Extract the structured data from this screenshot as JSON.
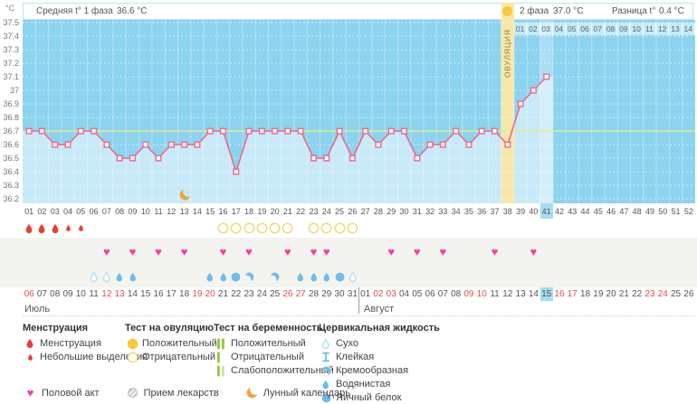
{
  "header": {
    "unit": "°C",
    "avg_phase1_label": "Средняя t° 1 фаза",
    "avg_phase1_value": "36.6 °C",
    "phase2_label": "2 фаза",
    "phase2_value": "37.0 °C",
    "diff_label": "Разница t°",
    "diff_value": "0.4 °C",
    "ovulation_label": "ОВУЛЯЦИЯ"
  },
  "chart_data": {
    "type": "line",
    "title": "График базальной температуры",
    "ylabel": "°C",
    "ylim": [
      36.2,
      37.5
    ],
    "y_ticks": [
      "37.5",
      "37.4",
      "37.3",
      "37.2",
      "37.1",
      "37",
      "36.9",
      "36.8",
      "36.7",
      "36.6",
      "36.5",
      "36.4",
      "36.3",
      "36.2"
    ],
    "total_cycle_days": 52,
    "series": [
      {
        "name": "Базальная температура",
        "x_start_day": 1,
        "values": [
          36.7,
          36.7,
          36.6,
          36.6,
          36.7,
          36.7,
          36.6,
          36.5,
          36.5,
          36.6,
          36.5,
          36.6,
          36.6,
          36.6,
          36.7,
          36.7,
          36.4,
          36.7,
          36.7,
          36.7,
          36.7,
          36.7,
          36.5,
          36.5,
          36.7,
          36.5,
          36.7,
          36.6,
          36.7,
          36.7,
          36.5,
          36.6,
          36.6,
          36.7,
          36.6,
          36.7,
          36.7,
          36.6,
          36.9,
          37.0,
          37.1
        ]
      }
    ],
    "coverline": 36.7,
    "ovulation_day": 38,
    "current_cycle_day": 41,
    "dpo_labels": [
      "01",
      "02",
      "03",
      "04",
      "05",
      "06",
      "07",
      "08",
      "09",
      "10",
      "11",
      "12",
      "13",
      "14"
    ],
    "cycle_day_labels": [
      "01",
      "02",
      "03",
      "04",
      "05",
      "06",
      "07",
      "08",
      "09",
      "10",
      "11",
      "12",
      "13",
      "14",
      "15",
      "16",
      "17",
      "18",
      "19",
      "20",
      "21",
      "22",
      "23",
      "24",
      "25",
      "26",
      "27",
      "28",
      "29",
      "30",
      "31",
      "32",
      "33",
      "34",
      "35",
      "36",
      "37",
      "38",
      "39",
      "40",
      "41",
      "42",
      "43",
      "44",
      "45",
      "46",
      "47",
      "48",
      "49",
      "50",
      "51",
      "52"
    ]
  },
  "markers": {
    "menstruation_heavy_days": [
      1,
      2,
      3
    ],
    "menstruation_light_days": [
      4,
      5
    ],
    "ovulation_test_negative_days": [
      16,
      17,
      18,
      19,
      20,
      21,
      23,
      24,
      25,
      26
    ],
    "intercourse_days": [
      7,
      9,
      11,
      13,
      16,
      18,
      21,
      23,
      24,
      29,
      31,
      33,
      37,
      40
    ],
    "lunar_days": [
      13
    ],
    "cervical_fluid": [
      {
        "day": 6,
        "type": "dry"
      },
      {
        "day": 7,
        "type": "dry"
      },
      {
        "day": 8,
        "type": "watery"
      },
      {
        "day": 9,
        "type": "watery"
      },
      {
        "day": 15,
        "type": "watery"
      },
      {
        "day": 16,
        "type": "watery"
      },
      {
        "day": 17,
        "type": "eggwhite"
      },
      {
        "day": 18,
        "type": "creamy"
      },
      {
        "day": 20,
        "type": "creamy"
      },
      {
        "day": 22,
        "type": "watery"
      },
      {
        "day": 23,
        "type": "watery"
      },
      {
        "day": 24,
        "type": "watery"
      },
      {
        "day": 25,
        "type": "eggwhite"
      },
      {
        "day": 26,
        "type": "dry"
      }
    ]
  },
  "calendar": {
    "months": [
      {
        "label": "Июль",
        "start_cycle_day": 1,
        "days": [
          "06",
          "07",
          "08",
          "09",
          "10",
          "11",
          "12",
          "13",
          "14",
          "15",
          "16",
          "17",
          "18",
          "19",
          "20",
          "21",
          "22",
          "23",
          "24",
          "25",
          "26",
          "27",
          "28",
          "29",
          "30",
          "31"
        ],
        "weekend": [
          "06",
          "12",
          "13",
          "19",
          "20",
          "26",
          "27"
        ],
        "today": ""
      },
      {
        "label": "Август",
        "start_cycle_day": 27,
        "days": [
          "01",
          "02",
          "03",
          "04",
          "05",
          "06",
          "07",
          "08",
          "09",
          "10",
          "11",
          "12",
          "13",
          "14",
          "15",
          "16",
          "17",
          "18",
          "19",
          "20",
          "21",
          "22",
          "23",
          "24",
          "25",
          "26"
        ],
        "weekend": [
          "02",
          "03",
          "09",
          "10",
          "16",
          "17",
          "23",
          "24"
        ],
        "today": "15"
      }
    ]
  },
  "legend": {
    "groups": [
      {
        "title": "Менструация",
        "items": [
          {
            "icon": "menstruation-heavy",
            "label": "Менструация"
          },
          {
            "icon": "menstruation-light",
            "label": "Небольшие выделения"
          }
        ]
      },
      {
        "title": "Тест на овуляцию",
        "items": [
          {
            "icon": "ovulation-positive",
            "label": "Положительный"
          },
          {
            "icon": "ovulation-negative",
            "label": "Отрицательный"
          }
        ]
      },
      {
        "title": "Тест на беременность",
        "items": [
          {
            "icon": "pregnancy-positive",
            "label": "Положительный"
          },
          {
            "icon": "pregnancy-negative",
            "label": "Отрицательный"
          },
          {
            "icon": "pregnancy-weak",
            "label": "Слабоположительный"
          }
        ]
      },
      {
        "title": "Цервикальная жидкость",
        "items": [
          {
            "icon": "fluid-dry",
            "label": "Сухо"
          },
          {
            "icon": "fluid-sticky",
            "label": "Клейкая"
          },
          {
            "icon": "fluid-creamy",
            "label": "Кремообразная"
          },
          {
            "icon": "fluid-watery",
            "label": "Водянистая"
          },
          {
            "icon": "fluid-eggwhite",
            "label": "Яичный белок"
          }
        ]
      }
    ],
    "footer": [
      {
        "icon": "intercourse",
        "label": "Половой акт"
      },
      {
        "icon": "medication",
        "label": "Прием лекарств"
      },
      {
        "icon": "lunar",
        "label": "Лунный календарь"
      }
    ]
  },
  "colors": {
    "chart_bg": "#8cd3ef",
    "fill": "#c8e9f7",
    "line": "#f0668c",
    "coverline": "#e6e98f",
    "ovulation_band": "#f7e8aa",
    "band_text": "#8d7b4c",
    "test_yellow": "#f9c93b",
    "test_yellow_outline": "#f6d36e",
    "heart_pink": "#f4419b",
    "blood_red": "#e73f38",
    "fluid_blue": "#6fbbe9",
    "fluid_dry_stroke": "#a5d9f3",
    "green": "#94c73d",
    "green_weak": "#cfe4a1",
    "moon_orange": "#f2a338",
    "pill_gray": "#c8c8c8",
    "highlight": "#a3ddf2",
    "weekend_red": "#e0504f"
  }
}
